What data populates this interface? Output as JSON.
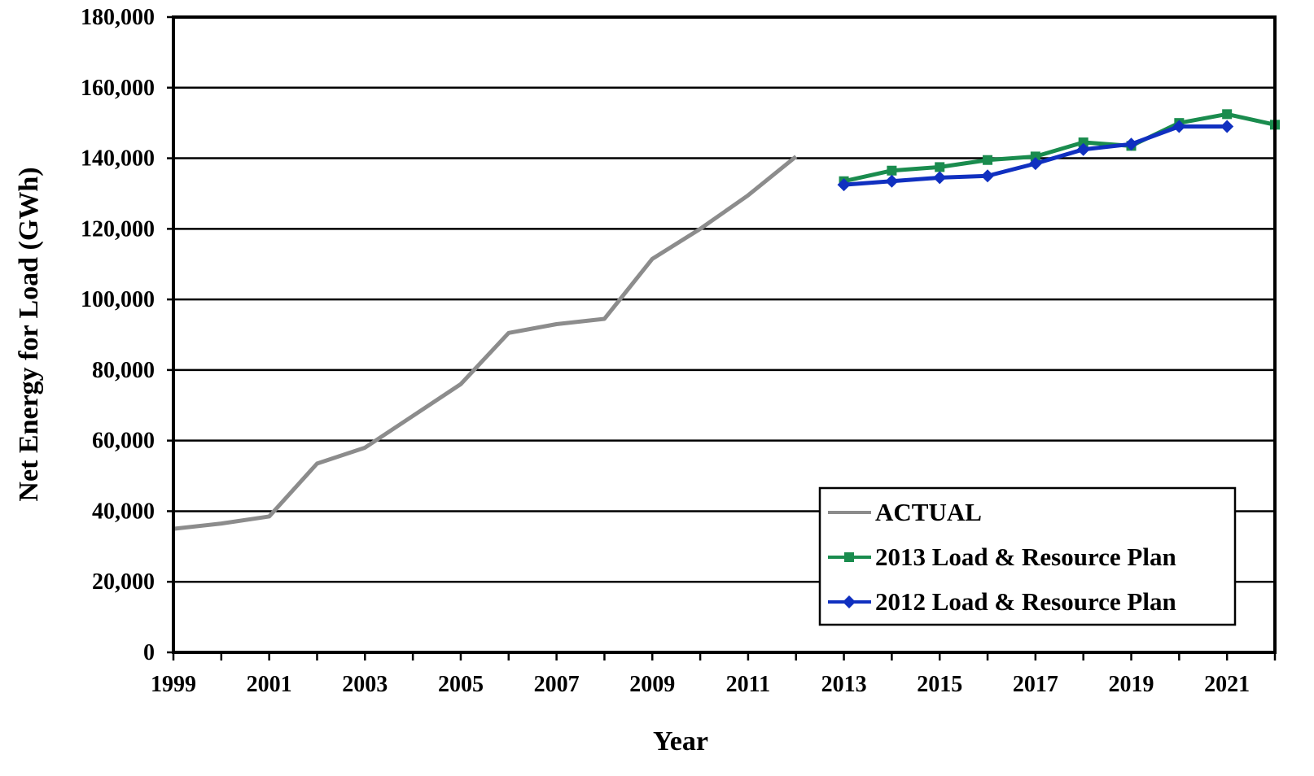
{
  "chart_data": {
    "type": "line",
    "xlabel": "Year",
    "ylabel": "Net Energy for Load  (GWh)",
    "xlim": [
      1999,
      2022
    ],
    "ylim": [
      0,
      180000
    ],
    "grid": true,
    "legend_position": "bottom-right",
    "x_ticks": [
      "1999",
      "2001",
      "2003",
      "2005",
      "2007",
      "2009",
      "2011",
      "2013",
      "2015",
      "2017",
      "2019",
      "2021"
    ],
    "y_ticks": [
      "0",
      "20,000",
      "40,000",
      "60,000",
      "80,000",
      "100,000",
      "120,000",
      "140,000",
      "160,000",
      "180,000"
    ],
    "series": [
      {
        "name": "ACTUAL",
        "color": "#8c8c8c",
        "marker": "none",
        "x": [
          1999,
          2000,
          2001,
          2002,
          2003,
          2004,
          2005,
          2006,
          2007,
          2008,
          2009,
          2010,
          2011,
          2012
        ],
        "values": [
          35000,
          36500,
          38500,
          53500,
          58000,
          67000,
          76000,
          90500,
          93000,
          94500,
          111500,
          120000,
          129500,
          140500
        ]
      },
      {
        "name": "2013 Load & Resource Plan",
        "color": "#1a8c4e",
        "marker": "square",
        "x": [
          2013,
          2014,
          2015,
          2016,
          2017,
          2018,
          2019,
          2020,
          2021,
          2022
        ],
        "values": [
          133500,
          136500,
          137500,
          139500,
          140500,
          144500,
          143500,
          150000,
          152500,
          149500
        ]
      },
      {
        "name": "2012 Load & Resource Plan",
        "color": "#1030c0",
        "marker": "diamond",
        "x": [
          2013,
          2014,
          2015,
          2016,
          2017,
          2018,
          2019,
          2020,
          2021
        ],
        "values": [
          132500,
          133500,
          134500,
          135000,
          138500,
          142500,
          144000,
          149000,
          149000
        ]
      }
    ]
  }
}
